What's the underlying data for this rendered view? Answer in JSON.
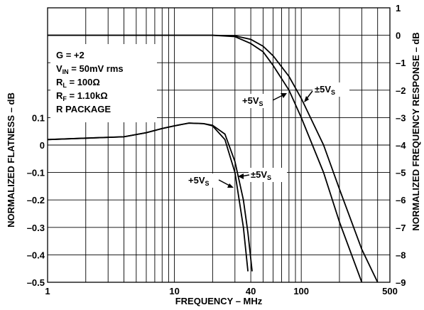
{
  "chart_data": {
    "type": "line",
    "xlabel": "FREQUENCY – MHz",
    "ylabel_left": "NORMALIZED FLATNESS – dB",
    "ylabel_right": "NORMALIZED FREQUENCY RESPONSE – dB",
    "x_scale": "log",
    "xlim": [
      1,
      500
    ],
    "x_ticks": [
      "1",
      "10",
      "40",
      "100",
      "500"
    ],
    "y_left_lim": [
      -0.5,
      0.15
    ],
    "y_left_ticks": [
      "0.1",
      "0",
      "–0.1",
      "–0.2",
      "–0.3",
      "–0.4",
      "–0.5"
    ],
    "y_right_lim": [
      -9,
      1
    ],
    "y_right_ticks": [
      "1",
      "0",
      "–1",
      "–2",
      "–3",
      "–4",
      "–5",
      "–6",
      "–7",
      "–8",
      "–9"
    ],
    "grid": true,
    "conditions": [
      "G = +2",
      "V_IN = 50mV rms",
      "R_L = 100Ω",
      "R_F = 1.10kΩ",
      "R PACKAGE"
    ],
    "series": [
      {
        "name": "+5V_S",
        "axis": "right",
        "x": [
          1,
          10,
          20,
          30,
          40,
          50,
          60,
          80,
          100,
          150,
          200,
          300
        ],
        "y": [
          0,
          0,
          0,
          -0.05,
          -0.3,
          -0.6,
          -1.1,
          -2.0,
          -3.0,
          -5.0,
          -6.8,
          -9.0
        ]
      },
      {
        "name": "±5V_S",
        "axis": "right",
        "x": [
          1,
          10,
          20,
          30,
          40,
          50,
          60,
          80,
          100,
          150,
          200,
          300,
          400
        ],
        "y": [
          0,
          0,
          0,
          -0.02,
          -0.15,
          -0.4,
          -0.75,
          -1.5,
          -2.3,
          -4.0,
          -5.6,
          -7.8,
          -9.0
        ]
      },
      {
        "name": "+5V_S",
        "axis": "left",
        "x": [
          1,
          2,
          4,
          6,
          8,
          10,
          13,
          17,
          20,
          25,
          30,
          35,
          38
        ],
        "y": [
          0.02,
          0.025,
          0.03,
          0.045,
          0.06,
          0.07,
          0.08,
          0.078,
          0.07,
          0.02,
          -0.1,
          -0.3,
          -0.46
        ]
      },
      {
        "name": "±5V_S",
        "axis": "left",
        "x": [
          1,
          2,
          4,
          6,
          8,
          10,
          13,
          17,
          20,
          25,
          30,
          35,
          38,
          41
        ],
        "y": [
          0.02,
          0.025,
          0.03,
          0.045,
          0.06,
          0.07,
          0.08,
          0.078,
          0.072,
          0.04,
          -0.06,
          -0.2,
          -0.32,
          -0.46
        ]
      }
    ],
    "labels": {
      "resp_plus": "+5V_S",
      "resp_pm": "±5V_S",
      "flat_plus": "+5V_S",
      "flat_pm": "±5V_S"
    }
  }
}
